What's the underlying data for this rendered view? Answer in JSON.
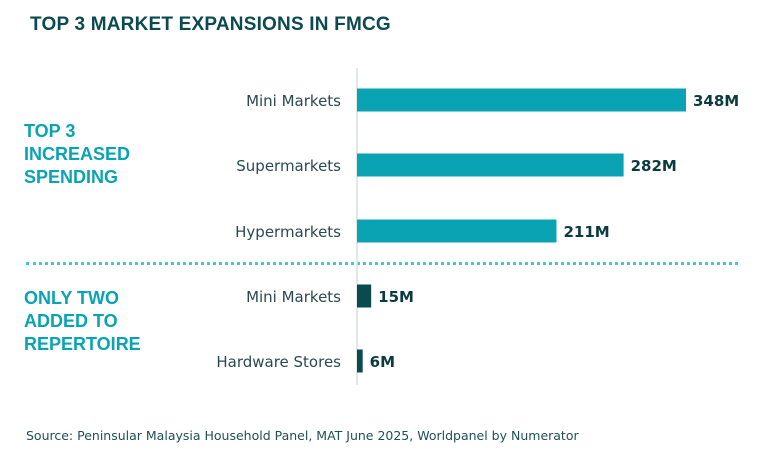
{
  "title": "TOP 3 MARKET EXPANSIONS IN FMCG",
  "source": "Source: Peninsular Malaysia Household Panel, MAT June 2025, Worldpanel by Numerator",
  "colors": {
    "title": "#0b4a4f",
    "group_label": "#0aa3b4",
    "bar_increased": "#0aa3b4",
    "bar_added": "#0b4a4f",
    "divider": "#3fcfbf",
    "category_text": "#2a4a50",
    "value_text": "#0b3a3f"
  },
  "groups": [
    {
      "label": "TOP 3 INCREASED SPENDING"
    },
    {
      "label": "ONLY TWO ADDED TO REPERTOIRE"
    }
  ],
  "chart_data": {
    "type": "bar",
    "orientation": "horizontal",
    "unit": "M",
    "xlim": [
      0,
      348
    ],
    "grid": false,
    "series": [
      {
        "group": "TOP 3 INCREASED SPENDING",
        "color": "#0aa3b4",
        "categories": [
          "Mini Markets",
          "Supermarkets",
          "Hypermarkets"
        ],
        "values": [
          348,
          282,
          211
        ],
        "labels": [
          "348M",
          "282M",
          "211M"
        ]
      },
      {
        "group": "ONLY TWO ADDED TO REPERTOIRE",
        "color": "#0b4a4f",
        "categories": [
          "Mini Markets",
          "Hardware Stores"
        ],
        "values": [
          15,
          6
        ],
        "labels": [
          "15M",
          "6M"
        ]
      }
    ]
  }
}
